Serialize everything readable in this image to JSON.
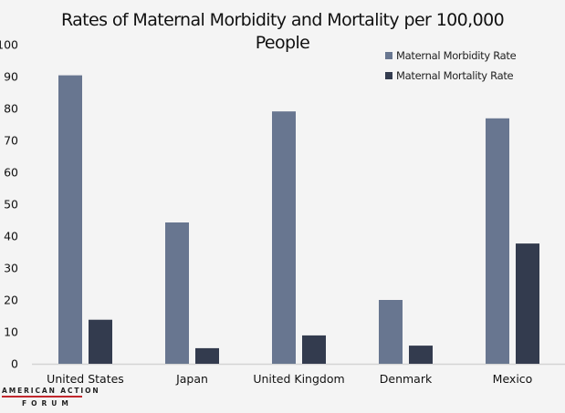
{
  "chart_data": {
    "type": "bar",
    "title": "Rates of Maternal Morbidity and Mortality per 100,000 People",
    "title_lines": [
      "Rates of Maternal Morbidity and Mortality per 100,000",
      "People"
    ],
    "xlabel": "",
    "ylabel": "",
    "categories": [
      "United States",
      "Japan",
      "United Kingdom",
      "Denmark",
      "Mexico"
    ],
    "series": [
      {
        "name": "Maternal Morbidity Rate",
        "color": "#687690",
        "values": [
          90.4,
          44.3,
          79.1,
          20.0,
          76.9
        ]
      },
      {
        "name": "Maternal Mortality Rate",
        "color": "#333b4e",
        "values": [
          13.8,
          4.9,
          8.9,
          5.7,
          37.7
        ]
      }
    ],
    "ylim": [
      0,
      100
    ],
    "yticks": [
      0,
      10,
      20,
      30,
      40,
      50,
      60,
      70,
      80,
      90,
      100
    ],
    "grid": false,
    "legend_position": "top-right"
  },
  "branding": {
    "line1": "AMERICAN ACTION",
    "line2": "FORUM",
    "accent_color": "#c1272d"
  }
}
